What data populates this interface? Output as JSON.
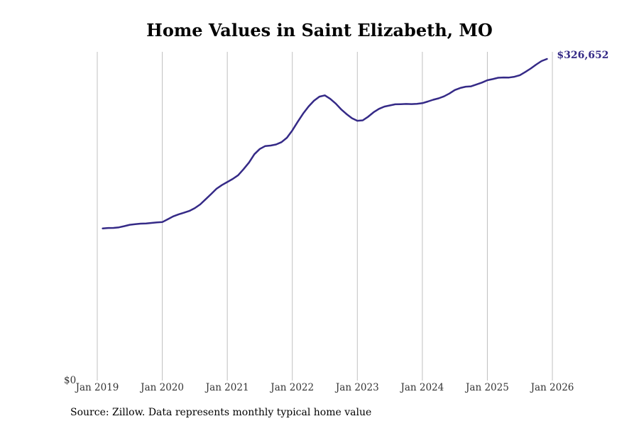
{
  "chart_data": {
    "type": "line",
    "title": "Home Values in Saint Elizabeth, MO",
    "source": "Source: Zillow. Data represents monthly typical home value",
    "line_color": "#352a87",
    "grid_color": "#c0c0c0",
    "y_zero_label": "$0",
    "end_label": "$326,652",
    "x_ticks": [
      "Jan 2019",
      "Jan 2020",
      "Jan 2021",
      "Jan 2022",
      "Jan 2023",
      "Jan 2024",
      "Jan 2025",
      "Jan 2026"
    ],
    "x_range": [
      "2019-01",
      "2026-01"
    ],
    "ylim": [
      0,
      326652
    ],
    "grid": "vertical",
    "series": [
      {
        "points": [
          [
            "2019-02",
            153000
          ],
          [
            "2019-03",
            153400
          ],
          [
            "2019-04",
            153500
          ],
          [
            "2019-05",
            154100
          ],
          [
            "2019-06",
            155300
          ],
          [
            "2019-07",
            156700
          ],
          [
            "2019-08",
            157300
          ],
          [
            "2019-09",
            157900
          ],
          [
            "2019-10",
            158100
          ],
          [
            "2019-11",
            158600
          ],
          [
            "2019-12",
            159100
          ],
          [
            "2020-01",
            159500
          ],
          [
            "2020-02",
            162300
          ],
          [
            "2020-03",
            165300
          ],
          [
            "2020-04",
            167400
          ],
          [
            "2020-05",
            169100
          ],
          [
            "2020-06",
            170900
          ],
          [
            "2020-07",
            173800
          ],
          [
            "2020-08",
            177600
          ],
          [
            "2020-09",
            182800
          ],
          [
            "2020-10",
            188100
          ],
          [
            "2020-11",
            193600
          ],
          [
            "2020-12",
            197400
          ],
          [
            "2021-01",
            200500
          ],
          [
            "2021-02",
            203700
          ],
          [
            "2021-03",
            207500
          ],
          [
            "2021-04",
            213700
          ],
          [
            "2021-05",
            220500
          ],
          [
            "2021-06",
            229000
          ],
          [
            "2021-07",
            234400
          ],
          [
            "2021-08",
            237400
          ],
          [
            "2021-09",
            237900
          ],
          [
            "2021-10",
            239000
          ],
          [
            "2021-11",
            241400
          ],
          [
            "2021-12",
            245900
          ],
          [
            "2022-01",
            253400
          ],
          [
            "2022-02",
            262200
          ],
          [
            "2022-03",
            270700
          ],
          [
            "2022-04",
            277900
          ],
          [
            "2022-05",
            283800
          ],
          [
            "2022-06",
            288000
          ],
          [
            "2022-07",
            289300
          ],
          [
            "2022-08",
            285800
          ],
          [
            "2022-09",
            281000
          ],
          [
            "2022-10",
            275100
          ],
          [
            "2022-11",
            270200
          ],
          [
            "2022-12",
            265900
          ],
          [
            "2023-01",
            263300
          ],
          [
            "2023-02",
            263700
          ],
          [
            "2023-03",
            267400
          ],
          [
            "2023-04",
            272000
          ],
          [
            "2023-05",
            275500
          ],
          [
            "2023-06",
            277800
          ],
          [
            "2023-07",
            279000
          ],
          [
            "2023-08",
            280200
          ],
          [
            "2023-09",
            280300
          ],
          [
            "2023-10",
            280500
          ],
          [
            "2023-11",
            280400
          ],
          [
            "2023-12",
            280600
          ],
          [
            "2024-01",
            281300
          ],
          [
            "2024-02",
            283000
          ],
          [
            "2024-03",
            284800
          ],
          [
            "2024-04",
            286300
          ],
          [
            "2024-05",
            288300
          ],
          [
            "2024-06",
            291200
          ],
          [
            "2024-07",
            294800
          ],
          [
            "2024-08",
            296900
          ],
          [
            "2024-09",
            298200
          ],
          [
            "2024-10",
            298600
          ],
          [
            "2024-11",
            300500
          ],
          [
            "2024-12",
            302400
          ],
          [
            "2025-01",
            304800
          ],
          [
            "2025-02",
            306000
          ],
          [
            "2025-03",
            307400
          ],
          [
            "2025-04",
            307700
          ],
          [
            "2025-05",
            307600
          ],
          [
            "2025-06",
            308400
          ],
          [
            "2025-07",
            310000
          ],
          [
            "2025-08",
            313300
          ],
          [
            "2025-09",
            316800
          ],
          [
            "2025-10",
            320800
          ],
          [
            "2025-11",
            324500
          ],
          [
            "2025-12",
            326652
          ]
        ]
      }
    ]
  }
}
